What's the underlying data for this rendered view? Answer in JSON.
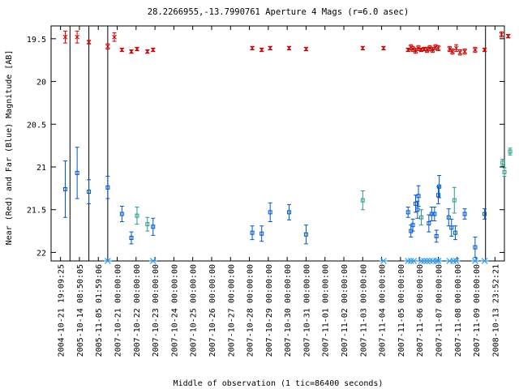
{
  "chart_data": {
    "type": "scatter",
    "title": "28.2266955,-13.7990761   Aperture 4 Mags (r=6.0 asec)",
    "xlabel": "Middle of observation (1 tic=86400 seconds)",
    "ylabel": "Near (Red) and Far (Blue) Magnitude [AB]",
    "y_inverted": true,
    "ylim": [
      22.1,
      19.35
    ],
    "yticks": [
      "19.5",
      "20",
      "20.5",
      "21",
      "21.5",
      "22"
    ],
    "grid": false,
    "legend": "none",
    "colors": {
      "near": "#cc0000",
      "far": "#0055cc",
      "far_alt": "#2a9a8a",
      "mark": "#3399ee"
    },
    "x_ticks": [
      "2004-10-21 19:09:25",
      "2005-10-14 08:50:05",
      "2005-11-05 01:59:06",
      "2007-10-21 00:00:00",
      "2007-10-22 00:00:00",
      "2007-10-23 00:00:00",
      "2007-10-24 00:00:00",
      "2007-10-25 00:00:00",
      "2007-10-26 00:00:00",
      "2007-10-27 00:00:00",
      "2007-10-28 00:00:00",
      "2007-10-29 00:00:00",
      "2007-10-30 00:00:00",
      "2007-10-31 00:00:00",
      "2007-11-01 00:00:00",
      "2007-11-02 00:00:00",
      "2007-11-03 00:00:00",
      "2007-11-04 00:00:00",
      "2007-11-05 00:00:00",
      "2007-11-06 00:00:00",
      "2007-11-07 00:00:00",
      "2007-11-08 00:00:00",
      "2007-11-09 00:00:00",
      "2008-10-13 23:52:21"
    ],
    "series": [
      {
        "name": "Near",
        "marker": "x",
        "points": [
          {
            "t": 0.25,
            "y": 19.48,
            "err": 0.07
          },
          {
            "t": 0.88,
            "y": 19.48,
            "err": 0.07
          },
          {
            "t": 1.5,
            "y": 19.54,
            "err": 0.02
          },
          {
            "t": 2.5,
            "y": 19.59,
            "err": 0.03
          },
          {
            "t": 2.85,
            "y": 19.48,
            "err": 0.05
          },
          {
            "t": 3.25,
            "y": 19.63,
            "err": 0.02
          },
          {
            "t": 3.75,
            "y": 19.65,
            "err": 0.02
          },
          {
            "t": 4.05,
            "y": 19.62,
            "err": 0.02
          },
          {
            "t": 4.6,
            "y": 19.65,
            "err": 0.02
          },
          {
            "t": 4.9,
            "y": 19.63,
            "err": 0.02
          },
          {
            "t": 10.15,
            "y": 19.61,
            "err": 0.02
          },
          {
            "t": 10.65,
            "y": 19.63,
            "err": 0.02
          },
          {
            "t": 11.1,
            "y": 19.61,
            "err": 0.02
          },
          {
            "t": 12.1,
            "y": 19.61,
            "err": 0.02
          },
          {
            "t": 13.0,
            "y": 19.62,
            "err": 0.02
          },
          {
            "t": 16.0,
            "y": 19.61,
            "err": 0.02
          },
          {
            "t": 17.1,
            "y": 19.61,
            "err": 0.02
          },
          {
            "t": 18.4,
            "y": 19.63,
            "err": 0.02
          },
          {
            "t": 18.55,
            "y": 19.6,
            "err": 0.03
          },
          {
            "t": 18.65,
            "y": 19.62,
            "err": 0.03
          },
          {
            "t": 18.8,
            "y": 19.64,
            "err": 0.03
          },
          {
            "t": 18.95,
            "y": 19.61,
            "err": 0.03
          },
          {
            "t": 19.1,
            "y": 19.63,
            "err": 0.02
          },
          {
            "t": 19.25,
            "y": 19.62,
            "err": 0.02
          },
          {
            "t": 19.4,
            "y": 19.63,
            "err": 0.03
          },
          {
            "t": 19.55,
            "y": 19.61,
            "err": 0.03
          },
          {
            "t": 19.7,
            "y": 19.63,
            "err": 0.03
          },
          {
            "t": 19.85,
            "y": 19.6,
            "err": 0.03
          },
          {
            "t": 20.0,
            "y": 19.61,
            "err": 0.03
          },
          {
            "t": 20.6,
            "y": 19.62,
            "err": 0.03
          },
          {
            "t": 20.75,
            "y": 19.65,
            "err": 0.03
          },
          {
            "t": 20.95,
            "y": 19.61,
            "err": 0.04
          },
          {
            "t": 21.15,
            "y": 19.66,
            "err": 0.03
          },
          {
            "t": 21.4,
            "y": 19.65,
            "err": 0.03
          },
          {
            "t": 21.95,
            "y": 19.63,
            "err": 0.03
          },
          {
            "t": 22.45,
            "y": 19.63,
            "err": 0.02
          },
          {
            "t": 23.35,
            "y": 19.45,
            "err": 0.03
          },
          {
            "t": 23.7,
            "y": 19.47,
            "err": 0.02
          }
        ]
      },
      {
        "name": "Far",
        "marker": "square",
        "points": [
          {
            "t": 0.25,
            "y": 21.26,
            "err": 0.33
          },
          {
            "t": 0.88,
            "y": 21.07,
            "err": 0.3
          },
          {
            "t": 1.5,
            "y": 21.29,
            "err": 0.14
          },
          {
            "t": 2.5,
            "y": 21.24,
            "err": 0.13
          },
          {
            "t": 3.25,
            "y": 21.55,
            "err": 0.09
          },
          {
            "t": 3.75,
            "y": 21.83,
            "err": 0.07
          },
          {
            "t": 4.05,
            "y": 21.57,
            "err": 0.1,
            "alt": true
          },
          {
            "t": 4.6,
            "y": 21.67,
            "err": 0.08,
            "alt": true
          },
          {
            "t": 4.9,
            "y": 21.7,
            "err": 0.1
          },
          {
            "t": 10.15,
            "y": 21.77,
            "err": 0.08
          },
          {
            "t": 10.65,
            "y": 21.78,
            "err": 0.09
          },
          {
            "t": 11.1,
            "y": 21.53,
            "err": 0.11
          },
          {
            "t": 12.1,
            "y": 21.53,
            "err": 0.09
          },
          {
            "t": 13.0,
            "y": 21.79,
            "err": 0.11
          },
          {
            "t": 16.0,
            "y": 21.39,
            "err": 0.11,
            "alt": true
          },
          {
            "t": 18.4,
            "y": 21.53,
            "err": 0.06
          },
          {
            "t": 18.55,
            "y": 21.75,
            "err": 0.07
          },
          {
            "t": 18.65,
            "y": 21.68,
            "err": 0.07
          },
          {
            "t": 18.8,
            "y": 21.43,
            "err": 0.1
          },
          {
            "t": 18.9,
            "y": 21.5,
            "err": 0.1
          },
          {
            "t": 18.95,
            "y": 21.34,
            "err": 0.12
          },
          {
            "t": 19.1,
            "y": 21.59,
            "err": 0.09,
            "alt": true
          },
          {
            "t": 19.5,
            "y": 21.66,
            "err": 0.1
          },
          {
            "t": 19.65,
            "y": 21.55,
            "err": 0.08
          },
          {
            "t": 19.8,
            "y": 21.55,
            "err": 0.08
          },
          {
            "t": 19.9,
            "y": 21.81,
            "err": 0.07
          },
          {
            "t": 20.0,
            "y": 21.33,
            "err": 0.1
          },
          {
            "t": 20.05,
            "y": 21.23,
            "err": 0.13
          },
          {
            "t": 20.55,
            "y": 21.59,
            "err": 0.1
          },
          {
            "t": 20.7,
            "y": 21.71,
            "err": 0.1
          },
          {
            "t": 20.85,
            "y": 21.39,
            "err": 0.15,
            "alt": true
          },
          {
            "t": 20.9,
            "y": 21.77,
            "err": 0.08
          },
          {
            "t": 21.4,
            "y": 21.55,
            "err": 0.06
          },
          {
            "t": 21.95,
            "y": 21.94,
            "err": 0.12
          },
          {
            "t": 22.45,
            "y": 21.55,
            "err": 0.06
          },
          {
            "t": 23.4,
            "y": 20.95,
            "err": 0.04,
            "alt": true
          },
          {
            "t": 23.5,
            "y": 21.06,
            "err": 0.05,
            "alt": true
          },
          {
            "t": 23.8,
            "y": 20.82,
            "err": 0.04,
            "alt": true
          }
        ]
      },
      {
        "name": "Marks",
        "marker": "asterisk",
        "points": [
          {
            "t": 2.5,
            "y": 22.1
          },
          {
            "t": 4.9,
            "y": 22.1
          },
          {
            "t": 17.1,
            "y": 22.1
          },
          {
            "t": 18.4,
            "y": 22.1
          },
          {
            "t": 18.55,
            "y": 22.1
          },
          {
            "t": 18.7,
            "y": 22.1
          },
          {
            "t": 19.1,
            "y": 22.1
          },
          {
            "t": 19.25,
            "y": 22.1
          },
          {
            "t": 19.4,
            "y": 22.1
          },
          {
            "t": 19.55,
            "y": 22.1
          },
          {
            "t": 19.7,
            "y": 22.1
          },
          {
            "t": 19.9,
            "y": 22.1
          },
          {
            "t": 20.0,
            "y": 22.1
          },
          {
            "t": 20.6,
            "y": 22.1
          },
          {
            "t": 20.8,
            "y": 22.1
          },
          {
            "t": 20.95,
            "y": 22.1
          },
          {
            "t": 21.95,
            "y": 22.1
          },
          {
            "t": 22.45,
            "y": 22.1
          }
        ]
      }
    ]
  }
}
